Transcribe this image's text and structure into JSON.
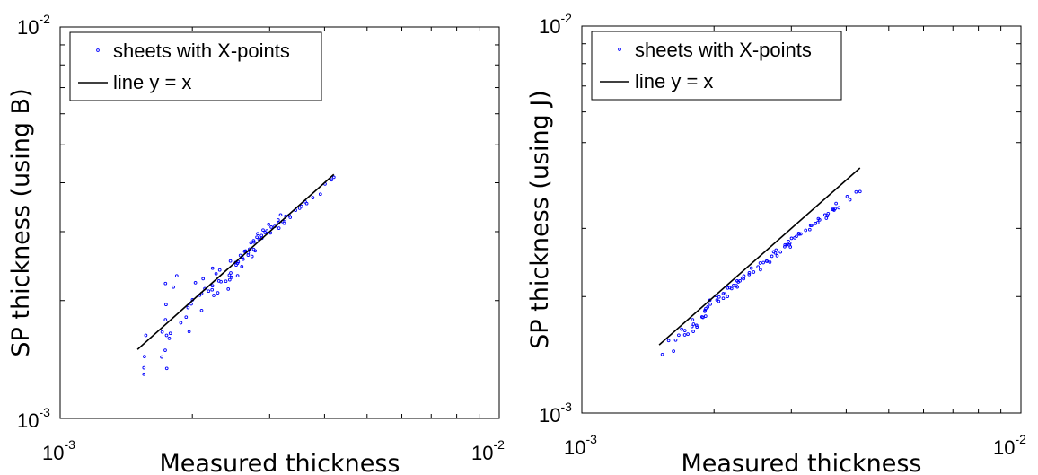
{
  "figure": {
    "background": "#ffffff",
    "point_color": "#0000ff",
    "line_color": "#000000"
  },
  "chart_data": [
    {
      "type": "scatter",
      "xscale": "log",
      "yscale": "log",
      "xlim": [
        0.001,
        0.01
      ],
      "ylim": [
        0.001,
        0.01
      ],
      "xlabel": "Measured thickness",
      "ylabel": "SP thickness (using B)",
      "x_ticks": [
        {
          "mantissa": "10",
          "exponent": "-3"
        },
        {
          "mantissa": "10",
          "exponent": "-2"
        }
      ],
      "y_ticks": [
        {
          "mantissa": "10",
          "exponent": "-3"
        },
        {
          "mantissa": "10",
          "exponent": "-2"
        }
      ],
      "legend_position": "top-left",
      "series": [
        {
          "name": "sheets with X-points",
          "kind": "points",
          "color": "#0000ff",
          "x": [
            0.001551,
            0.001552,
            0.001556,
            0.001567,
            0.001703,
            0.001707,
            0.001735,
            0.001737,
            0.001737,
            0.001742,
            0.001747,
            0.001749,
            0.001772,
            0.001782,
            0.001811,
            0.001843,
            0.001883,
            0.001936,
            0.001955,
            0.001966,
            0.001989,
            0.002002,
            0.002032,
            0.002079,
            0.002099,
            0.002099,
            0.002116,
            0.002135,
            0.002178,
            0.002218,
            0.002222,
            0.002224,
            0.002237,
            0.002265,
            0.002285,
            0.002298,
            0.002309,
            0.002324,
            0.002384,
            0.002415,
            0.002428,
            0.002433,
            0.002442,
            0.002446,
            0.002457,
            0.002511,
            0.002517,
            0.002535,
            0.002536,
            0.002544,
            0.002573,
            0.002592,
            0.002597,
            0.002611,
            0.00263,
            0.002644,
            0.00268,
            0.002681,
            0.002699,
            0.002719,
            0.002735,
            0.002757,
            0.002758,
            0.002762,
            0.002781,
            0.002806,
            0.002818,
            0.002838,
            0.002874,
            0.002881,
            0.002898,
            0.002929,
            0.002957,
            0.002984,
            0.003012,
            0.003025,
            0.003081,
            0.003137,
            0.003144,
            0.003149,
            0.003177,
            0.003207,
            0.003238,
            0.00325,
            0.003264,
            0.003322,
            0.003342,
            0.003435,
            0.00351,
            0.003544,
            0.003617,
            0.003643,
            0.003762,
            0.003914,
            0.004012,
            0.00415,
            0.0042
          ],
          "y": [
            0.001297,
            0.001347,
            0.001439,
            0.00163,
            0.001435,
            0.001663,
            0.001493,
            0.001787,
            0.002212,
            0.001954,
            0.00163,
            0.001342,
            0.001601,
            0.00165,
            0.002165,
            0.002313,
            0.001755,
            0.001814,
            0.001919,
            0.001666,
            0.001961,
            0.002009,
            0.002221,
            0.002064,
            0.002086,
            0.001887,
            0.002275,
            0.002145,
            0.002115,
            0.002131,
            0.002183,
            0.002419,
            0.002062,
            0.002341,
            0.002093,
            0.002245,
            0.002394,
            0.002235,
            0.002241,
            0.00214,
            0.002322,
            0.00226,
            0.002524,
            0.002353,
            0.002294,
            0.002503,
            0.002465,
            0.002489,
            0.002315,
            0.002512,
            0.002608,
            0.002443,
            0.002579,
            0.002551,
            0.002672,
            0.002677,
            0.002613,
            0.00265,
            0.002706,
            0.002809,
            0.002593,
            0.002844,
            0.002703,
            0.002821,
            0.00268,
            0.002903,
            0.002965,
            0.002871,
            0.002933,
            0.002886,
            0.003028,
            0.002984,
            0.003014,
            0.003133,
            0.002977,
            0.003082,
            0.003094,
            0.003212,
            0.003159,
            0.003062,
            0.003311,
            0.003185,
            0.003151,
            0.003221,
            0.003287,
            0.003301,
            0.003264,
            0.003401,
            0.003443,
            0.003484,
            0.003574,
            0.003539,
            0.003664,
            0.003741,
            0.003971,
            0.004069,
            0.004131
          ]
        },
        {
          "name": "line y = x",
          "kind": "line",
          "color": "#000000",
          "x": [
            0.0015,
            0.0042
          ],
          "y": [
            0.0015,
            0.0042
          ]
        }
      ]
    },
    {
      "type": "scatter",
      "xscale": "log",
      "yscale": "log",
      "xlim": [
        0.001,
        0.01
      ],
      "ylim": [
        0.001,
        0.01
      ],
      "xlabel": "Measured thickness",
      "ylabel": "SP thickness (using J)",
      "x_ticks": [
        {
          "mantissa": "10",
          "exponent": "-3"
        },
        {
          "mantissa": "10",
          "exponent": "-2"
        }
      ],
      "y_ticks": [
        {
          "mantissa": "10",
          "exponent": "-3"
        },
        {
          "mantissa": "10",
          "exponent": "-2"
        }
      ],
      "legend_position": "top-left",
      "series": [
        {
          "name": "sheets with X-points",
          "kind": "points",
          "color": "#0000ff",
          "x": [
            0.001525,
            0.001576,
            0.001617,
            0.001636,
            0.001662,
            0.001687,
            0.001715,
            0.001716,
            0.001744,
            0.001782,
            0.001787,
            0.001794,
            0.001796,
            0.001825,
            0.001829,
            0.001878,
            0.001887,
            0.001905,
            0.001908,
            0.001913,
            0.001915,
            0.001936,
            0.001957,
            0.001962,
            0.002021,
            0.002031,
            0.002049,
            0.002053,
            0.002099,
            0.002099,
            0.002117,
            0.002146,
            0.002148,
            0.002172,
            0.002193,
            0.002215,
            0.002248,
            0.002257,
            0.002259,
            0.002271,
            0.002291,
            0.00232,
            0.002336,
            0.002339,
            0.002404,
            0.002406,
            0.002432,
            0.002461,
            0.002519,
            0.002548,
            0.002551,
            0.00259,
            0.002633,
            0.002641,
            0.002681,
            0.002708,
            0.002734,
            0.002759,
            0.002771,
            0.002785,
            0.002834,
            0.002897,
            0.002903,
            0.002929,
            0.002955,
            0.002971,
            0.002976,
            0.002985,
            0.003003,
            0.003054,
            0.003082,
            0.003118,
            0.003127,
            0.003152,
            0.003233,
            0.003304,
            0.003318,
            0.003336,
            0.003405,
            0.003445,
            0.003456,
            0.003479,
            0.003579,
            0.003604,
            0.003623,
            0.003638,
            0.003721,
            0.00374,
            0.003753,
            0.003775,
            0.003793,
            0.003849,
            0.004021,
            0.00408,
            0.004212,
            0.0043
          ],
          "y": [
            0.001417,
            0.001539,
            0.001445,
            0.001543,
            0.001589,
            0.001647,
            0.001592,
            0.001634,
            0.001599,
            0.001674,
            0.001742,
            0.001625,
            0.001697,
            0.001684,
            0.001668,
            0.001771,
            0.001766,
            0.001831,
            0.001843,
            0.00178,
            0.001861,
            0.001879,
            0.001956,
            0.001911,
            0.002011,
            0.001959,
            0.001944,
            0.001994,
            0.002035,
            0.001979,
            0.002032,
            0.002002,
            0.002104,
            0.002108,
            0.002097,
            0.002136,
            0.002134,
            0.002195,
            0.002117,
            0.002181,
            0.002195,
            0.002232,
            0.002224,
            0.00226,
            0.002279,
            0.002303,
            0.002369,
            0.002314,
            0.002386,
            0.00244,
            0.002346,
            0.002447,
            0.002469,
            0.002467,
            0.002453,
            0.002541,
            0.002611,
            0.002591,
            0.002637,
            0.002548,
            0.002608,
            0.00269,
            0.00272,
            0.002722,
            0.002778,
            0.002718,
            0.002747,
            0.002687,
            0.002828,
            0.002836,
            0.002862,
            0.002914,
            0.002899,
            0.002903,
            0.002966,
            0.002978,
            0.003053,
            0.003055,
            0.003089,
            0.003103,
            0.003178,
            0.003156,
            0.00325,
            0.003188,
            0.003236,
            0.003278,
            0.003361,
            0.003359,
            0.003345,
            0.003376,
            0.00348,
            0.003392,
            0.003625,
            0.003556,
            0.003727,
            0.003735
          ]
        },
        {
          "name": "line y = x",
          "kind": "line",
          "color": "#000000",
          "x": [
            0.0015,
            0.0043
          ],
          "y": [
            0.0015,
            0.0043
          ]
        }
      ]
    }
  ]
}
